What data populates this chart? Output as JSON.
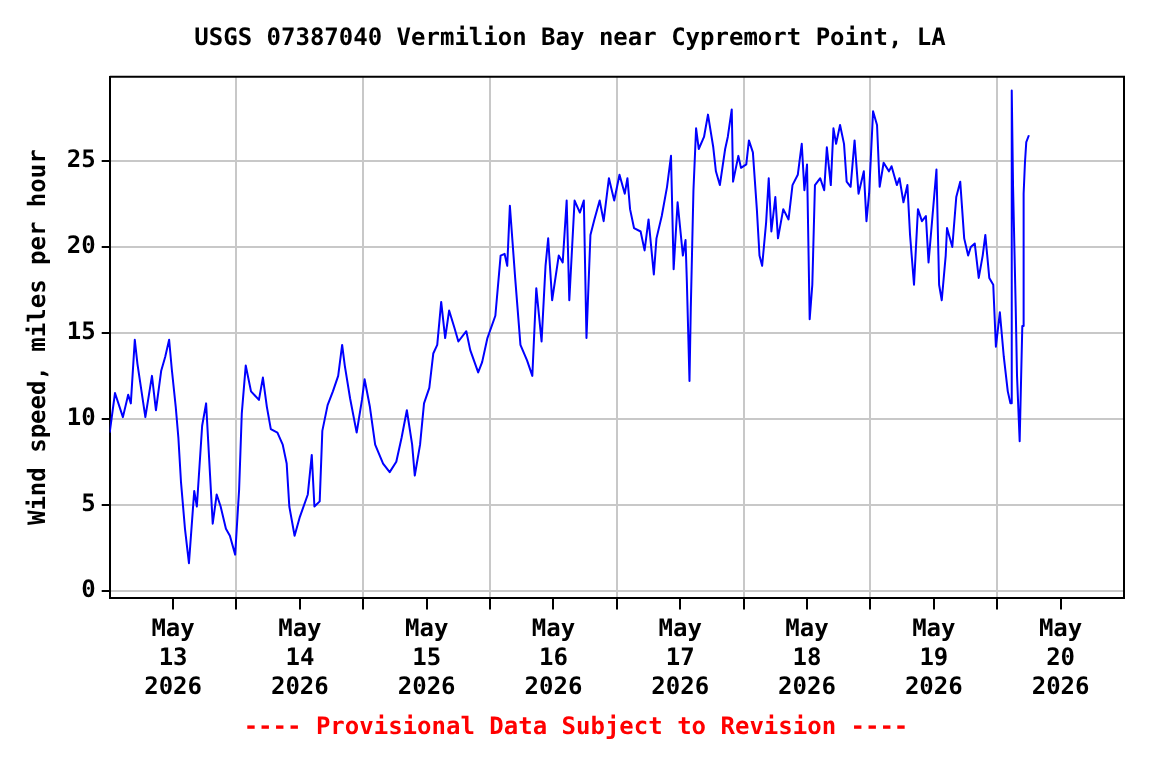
{
  "chart_data": {
    "type": "line",
    "title": "USGS 07387040 Vermilion Bay near Cypremort Point, LA",
    "ylabel": "Wind speed, miles per hour",
    "annotations": [
      "---- Provisional Data Subject to Revision ----"
    ],
    "xlim": [
      "2026-05-13T00:00",
      "2026-05-21T00:00"
    ],
    "xticks": [
      {
        "value": "2026-05-13T12:00",
        "label": "May 13 2026"
      },
      {
        "value": "2026-05-14T00:00",
        "label": null
      },
      {
        "value": "2026-05-14T12:00",
        "label": "May 14 2026"
      },
      {
        "value": "2026-05-15T00:00",
        "label": null
      },
      {
        "value": "2026-05-15T12:00",
        "label": "May 15 2026"
      },
      {
        "value": "2026-05-16T00:00",
        "label": null
      },
      {
        "value": "2026-05-16T12:00",
        "label": "May 16 2026"
      },
      {
        "value": "2026-05-17T00:00",
        "label": null
      },
      {
        "value": "2026-05-17T12:00",
        "label": "May 17 2026"
      },
      {
        "value": "2026-05-18T00:00",
        "label": null
      },
      {
        "value": "2026-05-18T12:00",
        "label": "May 18 2026"
      },
      {
        "value": "2026-05-19T00:00",
        "label": null
      },
      {
        "value": "2026-05-19T12:00",
        "label": "May 19 2026"
      },
      {
        "value": "2026-05-20T00:00",
        "label": null
      },
      {
        "value": "2026-05-20T12:00",
        "label": "May 20 2026"
      }
    ],
    "ylim": [
      -0.4,
      29.9
    ],
    "yticks": [
      0,
      5,
      10,
      15,
      20,
      25
    ],
    "grid": true,
    "legend": false,
    "marker": "none",
    "line_style": "solid",
    "series": [
      {
        "color": "#0000ff",
        "x": [
          "2026-05-13T00:00",
          "2026-05-13T01:00",
          "2026-05-13T02:30",
          "2026-05-13T03:30",
          "2026-05-13T04:00",
          "2026-05-13T04:45",
          "2026-05-13T05:15",
          "2026-05-13T06:45",
          "2026-05-13T08:00",
          "2026-05-13T08:45",
          "2026-05-13T09:45",
          "2026-05-13T10:30",
          "2026-05-13T11:15",
          "2026-05-13T11:45",
          "2026-05-13T12:30",
          "2026-05-13T13:00",
          "2026-05-13T13:30",
          "2026-05-13T14:15",
          "2026-05-13T15:00",
          "2026-05-13T16:00",
          "2026-05-13T16:30",
          "2026-05-13T17:30",
          "2026-05-13T18:15",
          "2026-05-13T19:00",
          "2026-05-13T19:30",
          "2026-05-13T20:15",
          "2026-05-13T21:00",
          "2026-05-13T22:00",
          "2026-05-13T22:45",
          "2026-05-13T23:45",
          "2026-05-14T00:30",
          "2026-05-14T01:00",
          "2026-05-14T01:45",
          "2026-05-14T02:45",
          "2026-05-14T04:15",
          "2026-05-14T05:00",
          "2026-05-14T05:45",
          "2026-05-14T06:30",
          "2026-05-14T07:45",
          "2026-05-14T08:45",
          "2026-05-14T09:30",
          "2026-05-14T10:00",
          "2026-05-14T11:00",
          "2026-05-14T12:00",
          "2026-05-14T13:30",
          "2026-05-14T14:15",
          "2026-05-14T14:45",
          "2026-05-14T15:45",
          "2026-05-14T16:15",
          "2026-05-14T17:15",
          "2026-05-14T18:15",
          "2026-05-14T19:15",
          "2026-05-14T20:00",
          "2026-05-14T20:30",
          "2026-05-14T21:30",
          "2026-05-14T22:45",
          "2026-05-14T23:45",
          "2026-05-15T00:15",
          "2026-05-15T01:15",
          "2026-05-15T02:15",
          "2026-05-15T03:45",
          "2026-05-15T05:00",
          "2026-05-15T06:15",
          "2026-05-15T07:15",
          "2026-05-15T08:15",
          "2026-05-15T09:15",
          "2026-05-15T09:45",
          "2026-05-15T10:45",
          "2026-05-15T11:30",
          "2026-05-15T12:30",
          "2026-05-15T13:15",
          "2026-05-15T14:00",
          "2026-05-15T14:45",
          "2026-05-15T15:30",
          "2026-05-15T16:15",
          "2026-05-15T17:15",
          "2026-05-15T18:00",
          "2026-05-15T19:30",
          "2026-05-15T20:15",
          "2026-05-15T21:45",
          "2026-05-15T22:30",
          "2026-05-15T23:30",
          "2026-05-16T01:00",
          "2026-05-16T02:00",
          "2026-05-16T02:45",
          "2026-05-16T03:15",
          "2026-05-16T03:45",
          "2026-05-16T04:45",
          "2026-05-16T05:45",
          "2026-05-16T07:00",
          "2026-05-16T08:00",
          "2026-05-16T08:45",
          "2026-05-16T09:45",
          "2026-05-16T10:30",
          "2026-05-16T11:00",
          "2026-05-16T11:45",
          "2026-05-16T13:00",
          "2026-05-16T13:45",
          "2026-05-16T14:30",
          "2026-05-16T15:00",
          "2026-05-16T16:00",
          "2026-05-16T17:00",
          "2026-05-16T17:45",
          "2026-05-16T18:15",
          "2026-05-16T19:00",
          "2026-05-16T19:45",
          "2026-05-16T20:45",
          "2026-05-16T21:30",
          "2026-05-16T22:30",
          "2026-05-16T23:30",
          "2026-05-17T00:30",
          "2026-05-17T01:30",
          "2026-05-17T02:00",
          "2026-05-17T02:30",
          "2026-05-17T03:15",
          "2026-05-17T04:30",
          "2026-05-17T05:15",
          "2026-05-17T06:00",
          "2026-05-17T07:00",
          "2026-05-17T07:30",
          "2026-05-17T08:30",
          "2026-05-17T09:30",
          "2026-05-17T10:15",
          "2026-05-17T10:45",
          "2026-05-17T11:30",
          "2026-05-17T12:30",
          "2026-05-17T13:00",
          "2026-05-17T13:15",
          "2026-05-17T13:45",
          "2026-05-17T14:00",
          "2026-05-17T14:30",
          "2026-05-17T15:00",
          "2026-05-17T15:30",
          "2026-05-17T16:30",
          "2026-05-17T17:15",
          "2026-05-17T18:15",
          "2026-05-17T18:45",
          "2026-05-17T19:30",
          "2026-05-17T20:30",
          "2026-05-17T21:00",
          "2026-05-17T21:45",
          "2026-05-17T22:00",
          "2026-05-17T23:00",
          "2026-05-17T23:30",
          "2026-05-18T00:30",
          "2026-05-18T01:00",
          "2026-05-18T01:45",
          "2026-05-18T02:30",
          "2026-05-18T03:00",
          "2026-05-18T03:30",
          "2026-05-18T04:15",
          "2026-05-18T04:45",
          "2026-05-18T05:15",
          "2026-05-18T06:00",
          "2026-05-18T06:30",
          "2026-05-18T07:30",
          "2026-05-18T08:30",
          "2026-05-18T09:15",
          "2026-05-18T10:15",
          "2026-05-18T11:00",
          "2026-05-18T11:30",
          "2026-05-18T12:00",
          "2026-05-18T12:30",
          "2026-05-18T13:00",
          "2026-05-18T13:30",
          "2026-05-18T14:30",
          "2026-05-18T15:15",
          "2026-05-18T15:45",
          "2026-05-18T16:30",
          "2026-05-18T17:00",
          "2026-05-18T17:30",
          "2026-05-18T18:15",
          "2026-05-18T19:00",
          "2026-05-18T19:30",
          "2026-05-18T20:15",
          "2026-05-18T21:00",
          "2026-05-18T21:45",
          "2026-05-18T22:45",
          "2026-05-18T23:15",
          "2026-05-18T23:45",
          "2026-05-19T00:30",
          "2026-05-19T01:15",
          "2026-05-19T01:45",
          "2026-05-19T02:30",
          "2026-05-19T03:30",
          "2026-05-19T04:00",
          "2026-05-19T05:00",
          "2026-05-19T05:30",
          "2026-05-19T06:15",
          "2026-05-19T07:00",
          "2026-05-19T07:30",
          "2026-05-19T08:15",
          "2026-05-19T09:00",
          "2026-05-19T09:45",
          "2026-05-19T10:30",
          "2026-05-19T11:00",
          "2026-05-19T11:45",
          "2026-05-19T12:30",
          "2026-05-19T13:00",
          "2026-05-19T13:30",
          "2026-05-19T14:15",
          "2026-05-19T14:30",
          "2026-05-19T15:30",
          "2026-05-19T16:15",
          "2026-05-19T17:00",
          "2026-05-19T17:45",
          "2026-05-19T18:30",
          "2026-05-19T19:00",
          "2026-05-19T19:45",
          "2026-05-19T20:30",
          "2026-05-19T21:15",
          "2026-05-19T21:45",
          "2026-05-19T22:30",
          "2026-05-19T23:15",
          "2026-05-19T23:45",
          "2026-05-20T00:30",
          "2026-05-20T01:15",
          "2026-05-20T02:00",
          "2026-05-20T02:30",
          "2026-05-20T02:45",
          "2026-05-20T03:00",
          "2026-05-20T03:30",
          "2026-05-20T03:45",
          "2026-05-20T04:15",
          "2026-05-20T04:45",
          "2026-05-20T05:00",
          "2026-05-20T05:15",
          "2026-05-20T05:30",
          "2026-05-20T06:00"
        ],
        "values": [
          9.2,
          11.5,
          10.1,
          11.4,
          10.9,
          14.6,
          13.2,
          10.1,
          12.5,
          10.5,
          12.8,
          13.6,
          14.6,
          12.9,
          10.7,
          8.9,
          6.3,
          3.6,
          1.6,
          5.8,
          4.9,
          9.6,
          10.9,
          6.7,
          3.9,
          5.6,
          4.9,
          3.6,
          3.2,
          2.1,
          5.9,
          10.3,
          13.1,
          11.6,
          11.1,
          12.4,
          10.7,
          9.4,
          9.2,
          8.5,
          7.4,
          4.9,
          3.2,
          4.3,
          5.6,
          7.9,
          4.9,
          5.2,
          9.3,
          10.8,
          11.6,
          12.5,
          14.3,
          13.1,
          11.2,
          9.2,
          11.1,
          12.3,
          10.7,
          8.5,
          7.4,
          6.9,
          7.5,
          8.9,
          10.5,
          8.5,
          6.7,
          8.5,
          10.9,
          11.8,
          13.8,
          14.3,
          16.8,
          14.7,
          16.3,
          15.3,
          14.5,
          15.1,
          14,
          12.7,
          13.3,
          14.7,
          16,
          19.5,
          19.6,
          18.9,
          22.4,
          18.2,
          14.3,
          13.4,
          12.5,
          17.6,
          14.5,
          18.9,
          20.5,
          16.9,
          19.5,
          19.1,
          22.7,
          16.9,
          22.7,
          22,
          22.7,
          14.7,
          20.7,
          21.6,
          22.7,
          21.5,
          24,
          22.7,
          24.2,
          23.1,
          24,
          22.2,
          21.1,
          20.9,
          19.8,
          21.6,
          18.4,
          20.5,
          21.8,
          23.5,
          25.3,
          18.7,
          22.6,
          19.5,
          20.4,
          18,
          12.2,
          16.5,
          23.3,
          26.9,
          25.7,
          26.4,
          27.7,
          25.8,
          24.4,
          23.6,
          25.7,
          26.4,
          28,
          23.8,
          25.3,
          24.6,
          24.8,
          26.2,
          25.5,
          22.2,
          19.5,
          18.9,
          21.4,
          24,
          20.9,
          22.9,
          20.5,
          22.2,
          21.6,
          23.6,
          24.2,
          26,
          23.3,
          24.8,
          15.8,
          17.8,
          23.6,
          24,
          23.3,
          25.8,
          23.6,
          26.9,
          26,
          27.1,
          26,
          23.8,
          23.5,
          26.2,
          23.1,
          24.4,
          21.5,
          23.1,
          27.9,
          27.1,
          23.5,
          24.9,
          24.4,
          24.7,
          23.6,
          24,
          22.6,
          23.6,
          20.7,
          17.8,
          22.2,
          21.5,
          21.8,
          19.1,
          21.8,
          24.5,
          17.8,
          16.9,
          19.5,
          21.1,
          20,
          22.9,
          23.8,
          20.5,
          19.5,
          20,
          20.2,
          18.2,
          19.5,
          20.7,
          18.2,
          17.8,
          14.2,
          16.2,
          13.6,
          11.6,
          10.9,
          29.1,
          23.5,
          16.5,
          12.5,
          8.7,
          15.4,
          23.1,
          24.9,
          26.1,
          26.5
        ]
      }
    ]
  }
}
